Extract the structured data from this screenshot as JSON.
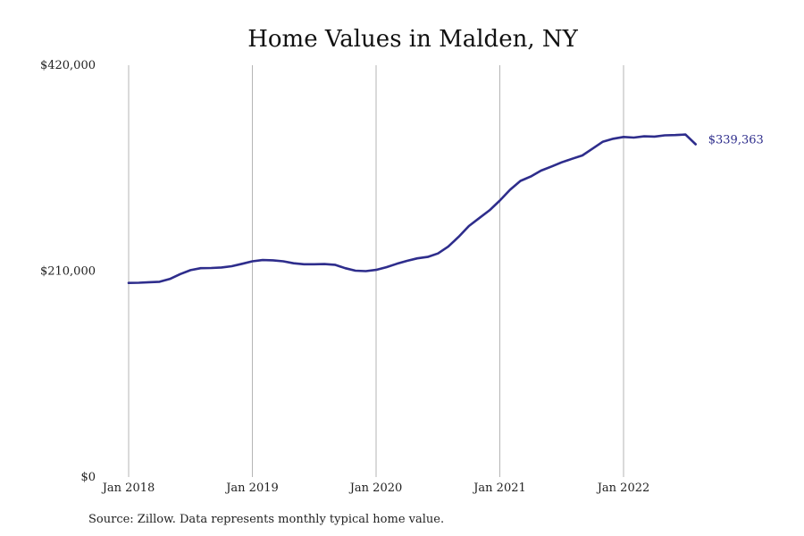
{
  "chart_data": {
    "type": "line",
    "title": "Home Values in Malden, NY",
    "xlabel": "",
    "ylabel": "",
    "ylim": [
      0,
      420000
    ],
    "yticks": [
      {
        "value": 0,
        "label": "$0"
      },
      {
        "value": 210000,
        "label": "$210,000"
      },
      {
        "value": 420000,
        "label": "$420,000"
      }
    ],
    "xticks": [
      {
        "value": 2018.0,
        "label": "Jan 2018"
      },
      {
        "value": 2019.0,
        "label": "Jan 2019"
      },
      {
        "value": 2020.0,
        "label": "Jan 2020"
      },
      {
        "value": 2021.0,
        "label": "Jan 2021"
      },
      {
        "value": 2022.0,
        "label": "Jan 2022"
      }
    ],
    "xlim": [
      2017.9,
      2022.95
    ],
    "grid": {
      "vertical": true,
      "horizontal": false
    },
    "series": [
      {
        "color": "#2e2d8c",
        "end_label": "$339,363",
        "x": [
          2018.0,
          2018.083,
          2018.167,
          2018.25,
          2018.333,
          2018.417,
          2018.5,
          2018.583,
          2018.667,
          2018.75,
          2018.833,
          2018.917,
          2019.0,
          2019.083,
          2019.167,
          2019.25,
          2019.333,
          2019.417,
          2019.5,
          2019.583,
          2019.667,
          2019.75,
          2019.833,
          2019.917,
          2020.0,
          2020.083,
          2020.167,
          2020.25,
          2020.333,
          2020.417,
          2020.5,
          2020.583,
          2020.667,
          2020.75,
          2020.833,
          2020.917,
          2021.0,
          2021.083,
          2021.167,
          2021.25,
          2021.333,
          2021.417,
          2021.5,
          2021.583,
          2021.667,
          2021.75,
          2021.833,
          2021.917,
          2022.0,
          2022.083,
          2022.167,
          2022.25,
          2022.333,
          2022.417,
          2022.5,
          2022.583
        ],
        "values": [
          198000,
          198200,
          198700,
          199200,
          202000,
          207000,
          211000,
          213000,
          213200,
          213700,
          215000,
          217500,
          220000,
          221300,
          221000,
          220000,
          218000,
          217000,
          217000,
          217200,
          216500,
          213000,
          210500,
          210000,
          211300,
          214000,
          217500,
          220500,
          223000,
          224500,
          228000,
          235000,
          245000,
          256000,
          264000,
          272000,
          282000,
          293000,
          302000,
          306500,
          312500,
          316700,
          321000,
          324500,
          328000,
          335000,
          342000,
          345000,
          346800,
          346200,
          347500,
          347200,
          348500,
          348800,
          349300,
          339363
        ]
      }
    ]
  },
  "source_note": "Source: Zillow. Data represents monthly typical home value."
}
